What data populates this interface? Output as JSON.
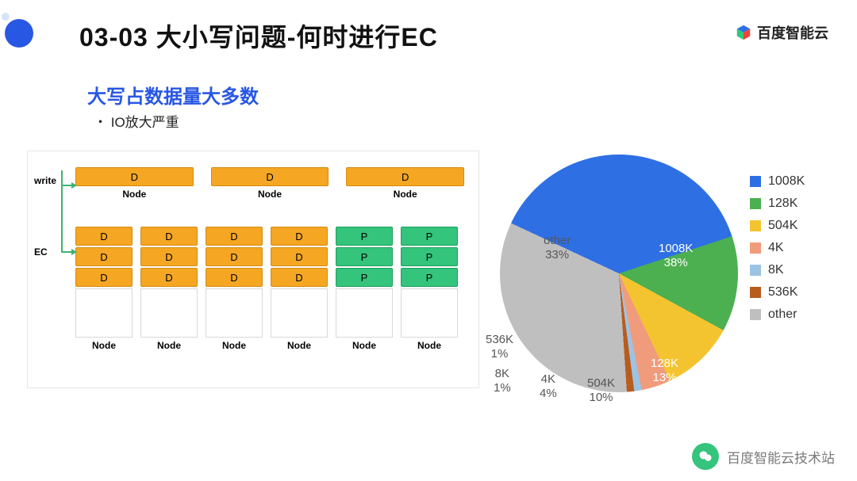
{
  "header": {
    "title": "03-03 大小写问题-何时进行EC",
    "logo_text": "百度智能云",
    "corner_dot_color": "#2857e4"
  },
  "section": {
    "subtitle": "大写占数据量大多数",
    "bullet": "・ IO放大严重"
  },
  "diagram": {
    "labels": {
      "write": "write",
      "ec": "EC",
      "node": "Node",
      "d": "D",
      "p": "P"
    },
    "top_nodes": 3,
    "ec_columns": [
      {
        "cells": [
          "D",
          "D",
          "D"
        ],
        "color": "orange"
      },
      {
        "cells": [
          "D",
          "D",
          "D"
        ],
        "color": "orange"
      },
      {
        "cells": [
          "D",
          "D",
          "D"
        ],
        "color": "orange"
      },
      {
        "cells": [
          "D",
          "D",
          "D"
        ],
        "color": "orange"
      },
      {
        "cells": [
          "P",
          "P",
          "P"
        ],
        "color": "green"
      },
      {
        "cells": [
          "P",
          "P",
          "P"
        ],
        "color": "green"
      }
    ],
    "colors": {
      "orange": "#f5a623",
      "green": "#34c47c",
      "connector": "#3cb371"
    }
  },
  "pie_chart": {
    "type": "pie",
    "background_color": "#ffffff",
    "label_fontsize": 15,
    "slices": [
      {
        "label": "1008K",
        "percent": 38,
        "color": "#2f6fe4",
        "callout": "1008K\n38%"
      },
      {
        "label": "128K",
        "percent": 13,
        "color": "#4caf50",
        "callout": "128K\n13%"
      },
      {
        "label": "504K",
        "percent": 10,
        "color": "#f4c430",
        "callout": "504K\n10%"
      },
      {
        "label": "4K",
        "percent": 4,
        "color": "#f19b7d",
        "callout": "4K\n4%"
      },
      {
        "label": "8K",
        "percent": 1,
        "color": "#9cc3e4",
        "callout": "8K\n1%"
      },
      {
        "label": "536K",
        "percent": 1,
        "color": "#b85c1e",
        "callout": "536K\n1%"
      },
      {
        "label": "other",
        "percent": 33,
        "color": "#bfbfbf",
        "callout": "other\n33%"
      }
    ],
    "start_angle_deg": -65
  },
  "legend": {
    "items": [
      {
        "label": "1008K",
        "color": "#2f6fe4"
      },
      {
        "label": "128K",
        "color": "#4caf50"
      },
      {
        "label": "504K",
        "color": "#f4c430"
      },
      {
        "label": "4K",
        "color": "#f19b7d"
      },
      {
        "label": "8K",
        "color": "#9cc3e4"
      },
      {
        "label": "536K",
        "color": "#b85c1e"
      },
      {
        "label": "other",
        "color": "#bfbfbf"
      }
    ]
  },
  "footer": {
    "text": "百度智能云技术站",
    "avatar_bg": "#34c47c"
  }
}
